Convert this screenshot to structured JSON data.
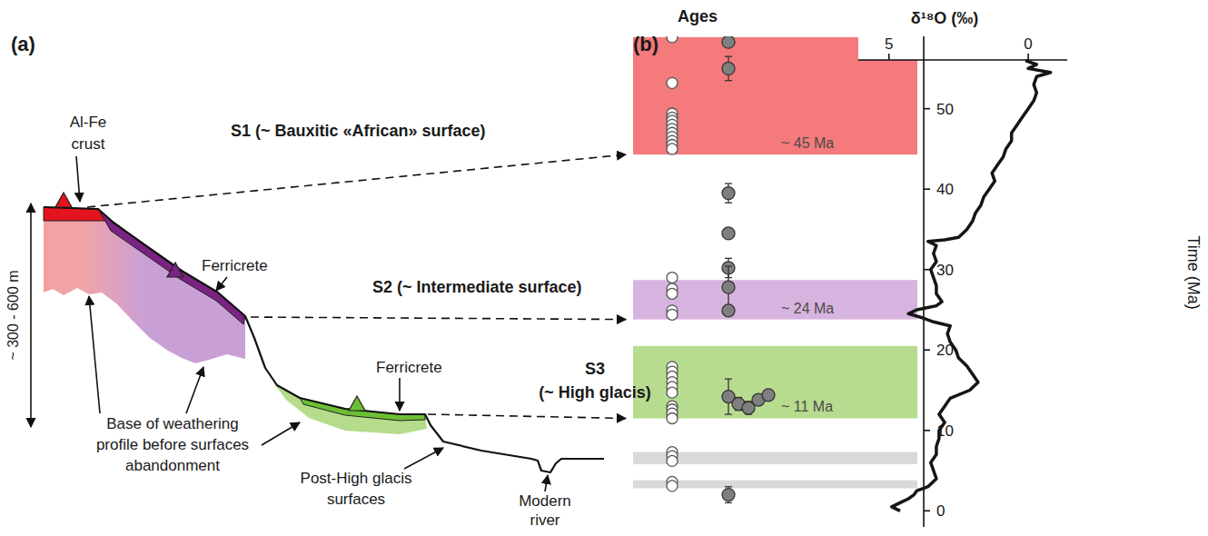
{
  "diagram": {
    "panel_label": "(a)",
    "crust_label": [
      "Al-Fe",
      "crust"
    ],
    "ferricrete_labels": [
      "Ferricrete",
      "Ferricrete"
    ],
    "height_label": "~ 300 - 600 m",
    "base_label": [
      "Base of weathering",
      "profile before surfaces",
      "abandonment"
    ],
    "post_label": [
      "Post-High glacis",
      "surfaces"
    ],
    "river_label": [
      "Modern",
      "river"
    ]
  },
  "chart_data": {
    "type": "scatter",
    "panel_label": "(b)",
    "ages_title": "Ages",
    "x_label": "δ¹⁸O (‰)",
    "y_label": "Time (Ma)",
    "xlim": [
      6.1,
      -1.4
    ],
    "xticks": [
      5,
      0
    ],
    "ylim": [
      -2,
      59
    ],
    "yticks": [
      0,
      10,
      20,
      30,
      40,
      50
    ],
    "grid": false,
    "bands": [
      {
        "name": [
          "S1 (~ Bauxitic «African» surface)"
        ],
        "label": "~ 45 Ma",
        "from": 44.3,
        "to": 58.9,
        "color": "#f47a7c"
      },
      {
        "name": [
          "S2 (~ Intermediate surface)"
        ],
        "label": "~ 24 Ma",
        "from": 23.8,
        "to": 28.7,
        "color": "#d7b4df"
      },
      {
        "name": [
          "S3",
          "(~ High glacis)"
        ],
        "label": "~ 11 Ma",
        "from": 11.5,
        "to": 20.5,
        "color": "#b8dc8f"
      },
      {
        "from": 5.8,
        "to": 7.3,
        "color": "#d9d9d9"
      },
      {
        "from": 2.8,
        "to": 3.8,
        "color": "#d9d9d9"
      }
    ],
    "series": [
      {
        "type": "line",
        "color": "#151515",
        "line_style": "solid",
        "x": [
          0.1,
          -0.3,
          0.0,
          -0.8,
          -0.3,
          -0.2,
          -0.3,
          -0.2,
          0.0,
          0.2,
          0.4,
          0.6,
          0.6,
          0.8,
          0.9,
          1.1,
          1.3,
          1.2,
          1.4,
          1.6,
          1.7,
          1.9,
          2.0,
          2.2,
          2.5,
          3.0,
          3.6,
          3.3,
          3.4,
          3.3,
          3.5,
          3.4,
          3.3,
          3.3,
          3.1,
          3.3,
          4.0,
          4.3,
          3.8,
          3.4,
          2.8,
          2.9,
          2.8,
          2.6,
          2.5,
          2.2,
          2.0,
          1.8,
          2.1,
          2.8,
          2.9,
          3.0,
          3.2,
          3.0,
          3.2,
          3.2,
          3.3,
          3.3,
          3.5,
          3.4,
          3.3,
          3.6,
          4.0,
          4.1,
          4.3,
          4.6,
          4.9,
          4.6
        ],
        "values": [
          56.0,
          55.5,
          55.0,
          54.5,
          54.0,
          53.0,
          52.0,
          51.0,
          50.0,
          49.0,
          48.0,
          47.0,
          46.0,
          45.0,
          44.0,
          43.0,
          42.0,
          41.0,
          40.0,
          39.0,
          38.0,
          37.0,
          36.0,
          35.0,
          34.0,
          33.7,
          33.5,
          33.0,
          32.0,
          31.0,
          30.0,
          29.0,
          28.0,
          27.0,
          26.0,
          25.5,
          25.0,
          24.5,
          24.0,
          23.5,
          23.0,
          22.0,
          21.0,
          20.0,
          19.0,
          18.0,
          17.0,
          16.0,
          15.0,
          14.0,
          13.5,
          13.0,
          12.0,
          11.0,
          10.0,
          9.0,
          8.0,
          7.0,
          6.0,
          5.0,
          4.0,
          3.0,
          2.5,
          2.0,
          1.5,
          1.0,
          0.5,
          0.0
        ]
      },
      {
        "type": "scatter",
        "marker": "circle",
        "color": "#ffffff",
        "values": [
          58.9,
          53.2,
          49.4,
          48.9,
          48.5,
          48.0,
          47.5,
          47.0,
          46.5,
          46.0,
          45.5,
          45.0,
          29.0,
          27.6,
          27.0,
          24.9,
          24.4,
          17.9,
          17.3,
          16.7,
          16.0,
          15.4,
          14.7,
          13.0,
          12.6,
          12.1,
          11.5,
          7.3,
          6.8,
          6.2,
          3.6,
          3.1
        ]
      },
      {
        "type": "scatter",
        "marker": "circle",
        "color": "#7f7f7f",
        "values": [
          58.3,
          55.0,
          39.5,
          34.5,
          30.2,
          27.8,
          24.9,
          14.2,
          13.3,
          12.8,
          13.8,
          14.4,
          2.0
        ],
        "errors": [
          0.3,
          1.5,
          1.2,
          0.6,
          1.2,
          2.6,
          0.6,
          2.2,
          0.8,
          0.8,
          0.5,
          0.4,
          1.0
        ]
      }
    ]
  }
}
